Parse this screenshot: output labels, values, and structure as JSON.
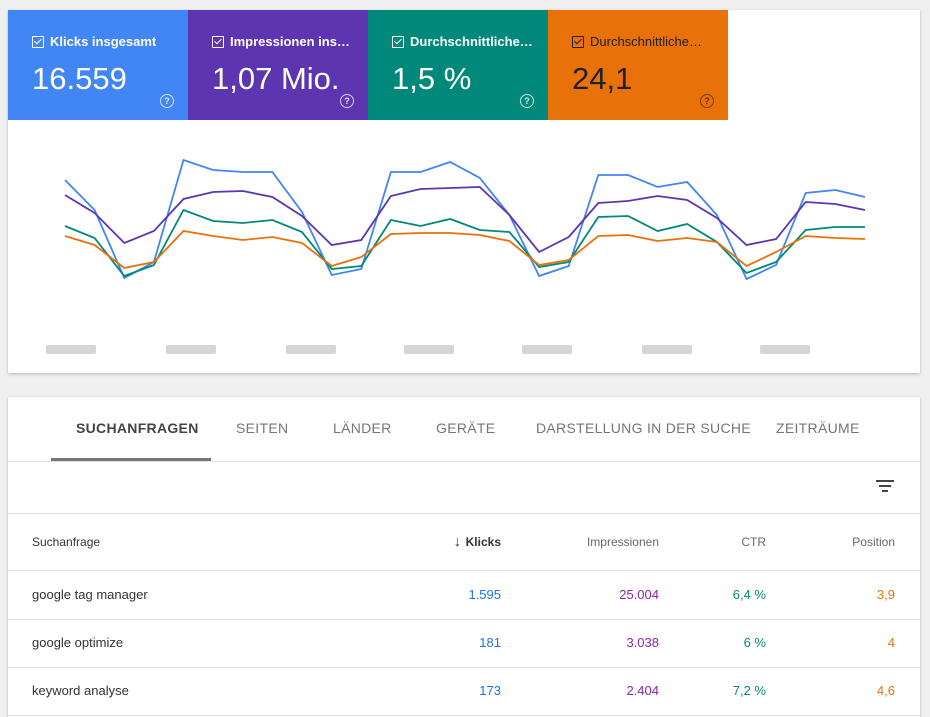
{
  "metrics": [
    {
      "label": "Klicks insgesamt",
      "value": "16.559",
      "color": "#4285f4",
      "text": "#ffffff"
    },
    {
      "label": "Impressionen ins…",
      "value": "1,07 Mio.",
      "color": "#5e35b1",
      "text": "#ffffff"
    },
    {
      "label": "Durchschnittliche…",
      "value": "1,5 %",
      "color": "#00897b",
      "text": "#ffffff"
    },
    {
      "label": "Durchschnittliche…",
      "value": "24,1",
      "color": "#e8710a",
      "text": "#202124"
    }
  ],
  "chart_data": {
    "type": "line",
    "x_labels_blurred": true,
    "series": [
      {
        "color": "#4285f4",
        "values": [
          180,
          210,
          278,
          262,
          160,
          170,
          172,
          172,
          212,
          275,
          269,
          172,
          172,
          162,
          178,
          215,
          276,
          266,
          175,
          175,
          187,
          182,
          215,
          279,
          265,
          193,
          190,
          197
        ]
      },
      {
        "color": "#5e35b1",
        "values": [
          195,
          213,
          243,
          231,
          199,
          192,
          191,
          197,
          216,
          245,
          240,
          196,
          189,
          188,
          187,
          215,
          252,
          237,
          203,
          201,
          196,
          200,
          218,
          245,
          239,
          202,
          204,
          210
        ]
      },
      {
        "color": "#00897b",
        "values": [
          226,
          238,
          276,
          265,
          210,
          221,
          223,
          220,
          232,
          269,
          266,
          220,
          226,
          219,
          230,
          232,
          267,
          262,
          217,
          216,
          231,
          224,
          242,
          273,
          262,
          230,
          227,
          227
        ]
      },
      {
        "color": "#e8710a",
        "values": [
          236,
          245,
          268,
          262,
          231,
          236,
          240,
          237,
          243,
          266,
          257,
          234,
          233,
          233,
          235,
          241,
          265,
          260,
          236,
          235,
          241,
          238,
          242,
          266,
          252,
          236,
          238,
          239
        ]
      }
    ]
  },
  "tabs": [
    "SUCHANFRAGEN",
    "SEITEN",
    "LÄNDER",
    "GERÄTE",
    "DARSTELLUNG IN DER SUCHE",
    "ZEITRÄUME"
  ],
  "table": {
    "headers": {
      "query": "Suchanfrage",
      "clicks": "Klicks",
      "impressions": "Impressionen",
      "ctr": "CTR",
      "position": "Position"
    },
    "sort_arrow": "↓",
    "rows": [
      {
        "query": "google tag manager",
        "clicks": "1.595",
        "impressions": "25.004",
        "ctr": "6,4 %",
        "position": "3,9"
      },
      {
        "query": "google optimize",
        "clicks": "181",
        "impressions": "3.038",
        "ctr": "6 %",
        "position": "4"
      },
      {
        "query": "keyword analyse",
        "clicks": "173",
        "impressions": "2.404",
        "ctr": "7,2 %",
        "position": "4,6"
      }
    ],
    "colors": {
      "clicks": "#1a73e8",
      "impressions": "#8e24aa",
      "ctr": "#00897b",
      "position": "#e8710a"
    }
  }
}
